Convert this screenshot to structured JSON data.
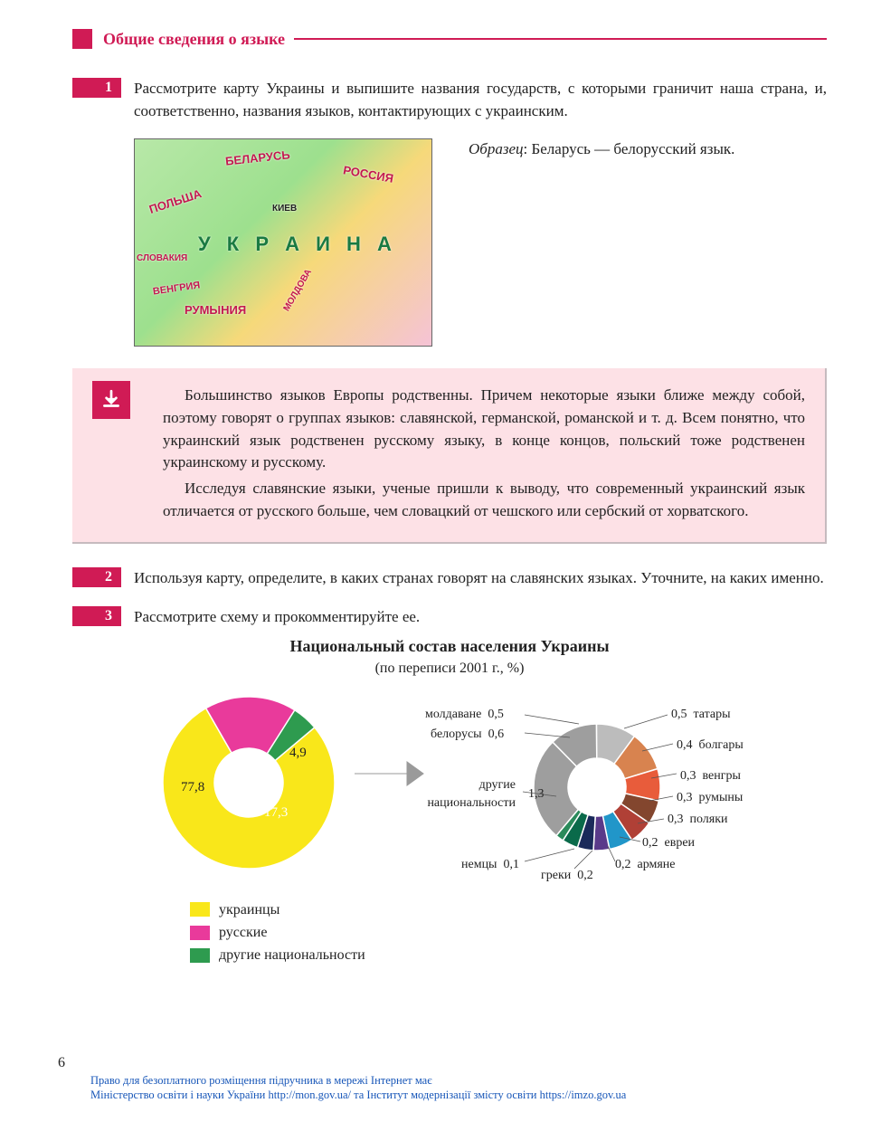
{
  "header": {
    "title": "Общие сведения о языке"
  },
  "tasks": {
    "t1": {
      "num": "1",
      "text": "Рассмотрите карту Украины и выпишите названия государств, с которыми граничит наша страна, и, соответственно, названия языков, контактирующих с украинским."
    },
    "t2": {
      "num": "2",
      "text": "Используя карту, определите, в каких странах говорят на славянских языках. Уточните, на каких именно."
    },
    "t3": {
      "num": "3",
      "text": "Рассмотрите схему и прокомментируйте ее."
    }
  },
  "map": {
    "countries": {
      "belarus": "БЕЛАРУСЬ",
      "russia": "РОССИЯ",
      "poland": "ПОЛЬША",
      "slovakia": "СЛОВАКИЯ",
      "hungary": "ВЕНГРИЯ",
      "romania": "РУМЫНИЯ",
      "moldova": "МОЛДОВА",
      "ukraine": "У К Р А И Н А",
      "kyiv": "КИЕВ"
    }
  },
  "sample": {
    "label": "Образец",
    "text": ": Беларусь — белорусский язык."
  },
  "info": {
    "p1": "Большинство языков Европы родственны. Причем некоторые языки ближе между собой, поэтому говорят о группах языков: славянской, германской, романской и т. д. Всем понятно, что украинский язык родственен русскому языку, в конце концов, польский тоже родственен украинскому и русскому.",
    "p2": "Исследуя славянские языки, ученые пришли к выводу, что современный украинский язык отличается от русского больше, чем словацкий от чешского или сербский от хорватского."
  },
  "chart": {
    "title": "Национальный состав населения Украины",
    "subtitle": "(по переписи 2001 г., %)",
    "main": {
      "series": [
        {
          "label": "украинцы",
          "value": 77.8,
          "color": "#f9e71a"
        },
        {
          "label": "русские",
          "value": 17.3,
          "color": "#e93a9b"
        },
        {
          "label": "другие национальности",
          "value": 4.9,
          "color": "#2e9b4f"
        }
      ],
      "v1": "77,8",
      "v2": "17,3",
      "v3": "4,9"
    },
    "detail": {
      "center_label1": "другие",
      "center_label2": "национальности",
      "center_value": "1,3",
      "items": [
        {
          "label": "белорусы",
          "value": "0,6",
          "color": "#9e9e9e"
        },
        {
          "label": "молдаване",
          "value": "0,5",
          "color": "#bcbcbc"
        },
        {
          "label": "татары",
          "value": "0,5",
          "color": "#d8834f"
        },
        {
          "label": "болгары",
          "value": "0,4",
          "color": "#e85c3b"
        },
        {
          "label": "венгры",
          "value": "0,3",
          "color": "#83462e"
        },
        {
          "label": "румыны",
          "value": "0,3",
          "color": "#b04036"
        },
        {
          "label": "поляки",
          "value": "0,3",
          "color": "#2196c9"
        },
        {
          "label": "евреи",
          "value": "0,2",
          "color": "#5a3a8a"
        },
        {
          "label": "армяне",
          "value": "0,2",
          "color": "#1a2a5a"
        },
        {
          "label": "греки",
          "value": "0,2",
          "color": "#0a6a4a"
        },
        {
          "label": "немцы",
          "value": "0,1",
          "color": "#2a8a5a"
        }
      ]
    },
    "legend": {
      "l1": "украинцы",
      "c1": "#f9e71a",
      "l2": "русские",
      "c2": "#e93a9b",
      "l3": "другие национальности",
      "c3": "#2e9b4f"
    }
  },
  "page_num": "6",
  "footer": {
    "l1": "Право для безоплатного розміщення підручника в мережі Інтернет має",
    "l2": "Міністерство освіти і науки України http://mon.gov.ua/ та Інститут модернізації змісту освіти https://imzo.gov.ua"
  }
}
